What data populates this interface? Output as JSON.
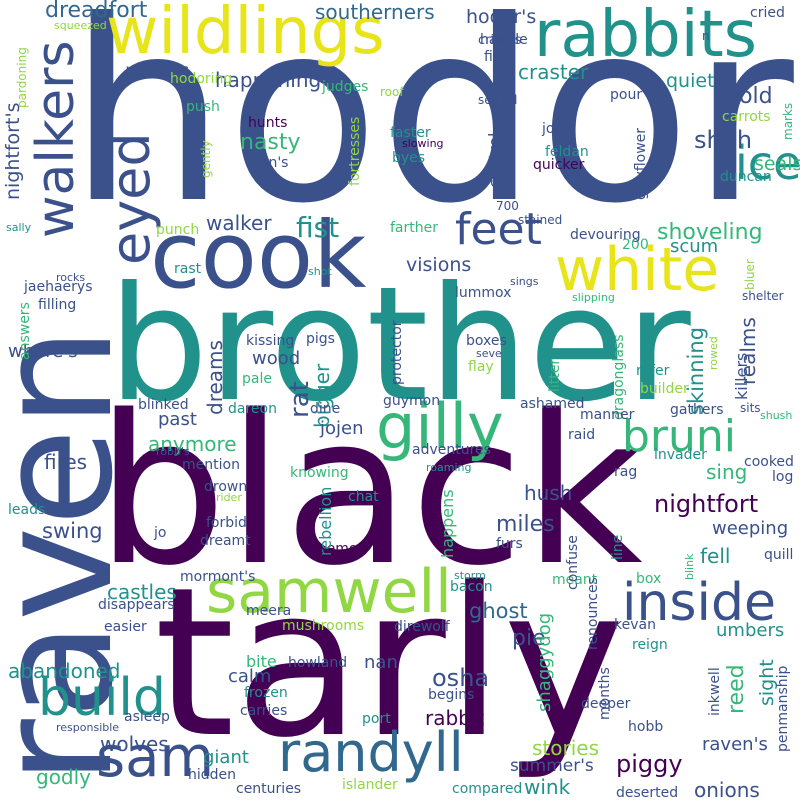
{
  "palette": {
    "indigo": "#3b518b",
    "purple": "#440154",
    "teal": "#21918c",
    "green": "#35b779",
    "lime": "#90d743",
    "yellow": "#e7e419",
    "dark": "#31688e"
  },
  "words": [
    {
      "text": "hodor",
      "color": "#3b518b"
    },
    {
      "text": "brother",
      "color": "#21918c"
    },
    {
      "text": "black",
      "color": "#440154"
    },
    {
      "text": "tarly",
      "color": "#440154"
    },
    {
      "text": "raven",
      "color": "#3b518b"
    },
    {
      "text": "cook",
      "color": "#3b518b"
    },
    {
      "text": "wildlings",
      "color": "#e7e419"
    },
    {
      "text": "rabbits",
      "color": "#21918c"
    },
    {
      "text": "white",
      "color": "#e7e419"
    },
    {
      "text": "walkers",
      "color": "#3b518b"
    },
    {
      "text": "eyed",
      "color": "#3b518b"
    },
    {
      "text": "feet",
      "color": "#3b518b"
    },
    {
      "text": "ice",
      "color": "#21918c"
    },
    {
      "text": "gilly",
      "color": "#35b779"
    },
    {
      "text": "bruni",
      "color": "#35b779"
    },
    {
      "text": "samwell",
      "color": "#90d743"
    },
    {
      "text": "inside",
      "color": "#3b518b"
    },
    {
      "text": "build",
      "color": "#21918c"
    },
    {
      "text": "randyll",
      "color": "#31688e"
    },
    {
      "text": "sam",
      "color": "#3b518b"
    },
    {
      "text": "dreadfort",
      "color": "#31688e"
    },
    {
      "text": "southerners",
      "color": "#31688e"
    },
    {
      "text": "hodor's",
      "color": "#3b518b"
    },
    {
      "text": "crimes",
      "color": "#3b518b"
    },
    {
      "text": "ravens",
      "color": "#3b518b"
    },
    {
      "text": "happening",
      "color": "#3b518b"
    },
    {
      "text": "craster",
      "color": "#21918c"
    },
    {
      "text": "quiet",
      "color": "#21918c"
    },
    {
      "text": "cold",
      "color": "#3b518b"
    },
    {
      "text": "shhh",
      "color": "#3b518b"
    },
    {
      "text": "nasty",
      "color": "#35b779"
    },
    {
      "text": "fist",
      "color": "#21918c"
    },
    {
      "text": "walker",
      "color": "#3b518b"
    },
    {
      "text": "shoveling",
      "color": "#35b779"
    },
    {
      "text": "seals",
      "color": "#35b779"
    },
    {
      "text": "nightfort's",
      "color": "#3b518b"
    },
    {
      "text": "visions",
      "color": "#3b518b"
    },
    {
      "text": "scum",
      "color": "#21918c"
    },
    {
      "text": "dreams",
      "color": "#3b518b"
    },
    {
      "text": "skinning",
      "color": "#21918c"
    },
    {
      "text": "realms",
      "color": "#3b518b"
    },
    {
      "text": "where's",
      "color": "#3b518b"
    },
    {
      "text": "wood",
      "color": "#3b518b"
    },
    {
      "text": "rat",
      "color": "#3b518b"
    },
    {
      "text": "bigger",
      "color": "#21918c"
    },
    {
      "text": "jojen",
      "color": "#3b518b"
    },
    {
      "text": "anymore",
      "color": "#35b779"
    },
    {
      "text": "past",
      "color": "#3b518b"
    },
    {
      "text": "fires",
      "color": "#3b518b"
    },
    {
      "text": "sing",
      "color": "#35b779"
    },
    {
      "text": "nightfort",
      "color": "#440154"
    },
    {
      "text": "hush",
      "color": "#3b518b"
    },
    {
      "text": "miles",
      "color": "#3b518b"
    },
    {
      "text": "swing",
      "color": "#3b518b"
    },
    {
      "text": "weeping",
      "color": "#3b518b"
    },
    {
      "text": "fell",
      "color": "#21918c"
    },
    {
      "text": "castles",
      "color": "#21918c"
    },
    {
      "text": "ghost",
      "color": "#31688e"
    },
    {
      "text": "pie",
      "color": "#3b518b"
    },
    {
      "text": "abandoned",
      "color": "#21918c"
    },
    {
      "text": "osha",
      "color": "#3b518b"
    },
    {
      "text": "nan",
      "color": "#3b518b"
    },
    {
      "text": "calm",
      "color": "#3b518b"
    },
    {
      "text": "umbers",
      "color": "#21918c"
    },
    {
      "text": "reed",
      "color": "#35b779"
    },
    {
      "text": "sight",
      "color": "#21918c"
    },
    {
      "text": "rabbit",
      "color": "#440154"
    },
    {
      "text": "wolves",
      "color": "#3b518b"
    },
    {
      "text": "giant",
      "color": "#21918c"
    },
    {
      "text": "stories",
      "color": "#90d743"
    },
    {
      "text": "wink",
      "color": "#21918c"
    },
    {
      "text": "piggy",
      "color": "#440154"
    },
    {
      "text": "raven's",
      "color": "#3b518b"
    },
    {
      "text": "summer's",
      "color": "#3b518b"
    },
    {
      "text": "onions",
      "color": "#3b518b"
    },
    {
      "text": "godly",
      "color": "#35b779"
    },
    {
      "text": "bite",
      "color": "#35b779"
    },
    {
      "text": "shaggydog",
      "color": "#35b779"
    },
    {
      "text": "hunts",
      "color": "#440154"
    },
    {
      "text": "faster",
      "color": "#21918c"
    },
    {
      "text": "joins",
      "color": "#3b518b"
    },
    {
      "text": "feldan",
      "color": "#21918c"
    },
    {
      "text": "byes",
      "color": "#21918c"
    },
    {
      "text": "quicker",
      "color": "#440154"
    },
    {
      "text": "duncan",
      "color": "#21918c"
    },
    {
      "text": "cooked",
      "color": "#3b518b"
    },
    {
      "text": "log",
      "color": "#3b518b"
    },
    {
      "text": "boxes",
      "color": "#3b518b"
    },
    {
      "text": "flay",
      "color": "#90d743"
    },
    {
      "text": "refer",
      "color": "#21918c"
    },
    {
      "text": "builder",
      "color": "#90d743"
    },
    {
      "text": "gathers",
      "color": "#3b518b"
    },
    {
      "text": "ashamed",
      "color": "#3b518b"
    },
    {
      "text": "guymon",
      "color": "#3b518b"
    },
    {
      "text": "raid",
      "color": "#3b518b"
    },
    {
      "text": "adventures",
      "color": "#3b518b"
    },
    {
      "text": "invader",
      "color": "#21918c"
    },
    {
      "text": "rag",
      "color": "#3b518b"
    },
    {
      "text": "blinked",
      "color": "#3b518b"
    },
    {
      "text": "dareon",
      "color": "#21918c"
    },
    {
      "text": "mention",
      "color": "#3b518b"
    },
    {
      "text": "drown",
      "color": "#3b518b"
    },
    {
      "text": "forbid",
      "color": "#3b518b"
    },
    {
      "text": "dreamt",
      "color": "#3b518b"
    },
    {
      "text": "chat",
      "color": "#21918c"
    },
    {
      "text": "furs",
      "color": "#3b518b"
    },
    {
      "text": "leads",
      "color": "#21918c"
    },
    {
      "text": "jo",
      "color": "#3b518b"
    },
    {
      "text": "aemon",
      "color": "#440154"
    },
    {
      "text": "mormont's",
      "color": "#3b518b"
    },
    {
      "text": "disappears",
      "color": "#3b518b"
    },
    {
      "text": "easier",
      "color": "#3b518b"
    },
    {
      "text": "meera",
      "color": "#3b518b"
    },
    {
      "text": "mushrooms",
      "color": "#90d743"
    },
    {
      "text": "direwolf",
      "color": "#3b518b"
    },
    {
      "text": "bacon",
      "color": "#21918c"
    },
    {
      "text": "meant",
      "color": "#35b779"
    },
    {
      "text": "kevan",
      "color": "#3b518b"
    },
    {
      "text": "reign",
      "color": "#21918c"
    },
    {
      "text": "box",
      "color": "#35b779"
    },
    {
      "text": "howland",
      "color": "#3b518b"
    },
    {
      "text": "frozen",
      "color": "#21918c"
    },
    {
      "text": "carries",
      "color": "#3b518b"
    },
    {
      "text": "begins",
      "color": "#3b518b"
    },
    {
      "text": "deeper",
      "color": "#3b518b"
    },
    {
      "text": "hobb",
      "color": "#3b518b"
    },
    {
      "text": "port",
      "color": "#21918c"
    },
    {
      "text": "asleep",
      "color": "#3b518b"
    },
    {
      "text": "hidden",
      "color": "#3b518b"
    },
    {
      "text": "centuries",
      "color": "#3b518b"
    },
    {
      "text": "islander",
      "color": "#90d743"
    },
    {
      "text": "compared",
      "color": "#21918c"
    },
    {
      "text": "deserted",
      "color": "#3b518b"
    },
    {
      "text": "handle",
      "color": "#3b518b"
    },
    {
      "text": "fists",
      "color": "#3b518b"
    },
    {
      "text": "pour",
      "color": "#3b518b"
    },
    {
      "text": "cried",
      "color": "#3b518b"
    },
    {
      "text": "carrots",
      "color": "#90d743"
    },
    {
      "text": "judges",
      "color": "#35b779"
    },
    {
      "text": "hodoring",
      "color": "#90d743"
    },
    {
      "text": "push",
      "color": "#35b779"
    },
    {
      "text": "jon's",
      "color": "#3b518b"
    },
    {
      "text": "fortresses",
      "color": "#90d743"
    },
    {
      "text": "control",
      "color": "#3b518b"
    },
    {
      "text": "gillyflower",
      "color": "#3b518b"
    },
    {
      "text": "700",
      "color": "#3b518b"
    },
    {
      "text": "200",
      "color": "#35b779"
    },
    {
      "text": "devouring",
      "color": "#3b518b"
    },
    {
      "text": "farther",
      "color": "#35b779"
    },
    {
      "text": "punch",
      "color": "#90d743"
    },
    {
      "text": "rast",
      "color": "#21918c"
    },
    {
      "text": "lummox",
      "color": "#3b518b"
    },
    {
      "text": "filling",
      "color": "#3b518b"
    },
    {
      "text": "jaehaerys",
      "color": "#3b518b"
    },
    {
      "text": "answers",
      "color": "#35b779"
    },
    {
      "text": "kissing",
      "color": "#3b518b"
    },
    {
      "text": "pigs",
      "color": "#3b518b"
    },
    {
      "text": "pale",
      "color": "#35b779"
    },
    {
      "text": "protector",
      "color": "#3b518b"
    },
    {
      "text": "dragonglass",
      "color": "#35b779"
    },
    {
      "text": "litter",
      "color": "#35b779"
    },
    {
      "text": "killers",
      "color": "#3b518b"
    },
    {
      "text": "dine",
      "color": "#3b518b"
    },
    {
      "text": "knowing",
      "color": "#35b779"
    },
    {
      "text": "rebellion",
      "color": "#21918c"
    },
    {
      "text": "happens",
      "color": "#35b779"
    },
    {
      "text": "confuse",
      "color": "#3b518b"
    },
    {
      "text": "renounces",
      "color": "#3b518b"
    },
    {
      "text": "months",
      "color": "#3b518b"
    },
    {
      "text": "inkwell",
      "color": "#3b518b"
    },
    {
      "text": "penmanship",
      "color": "#3b518b"
    },
    {
      "text": "line",
      "color": "#21918c"
    },
    {
      "text": "quill",
      "color": "#3b518b"
    },
    {
      "text": "manner",
      "color": "#3b518b"
    },
    {
      "text": "marks",
      "color": "#35b779"
    },
    {
      "text": "bluer",
      "color": "#90d743"
    },
    {
      "text": "shelter",
      "color": "#3b518b"
    },
    {
      "text": "sits",
      "color": "#3b518b"
    },
    {
      "text": "gently",
      "color": "#90d743"
    },
    {
      "text": "roof",
      "color": "#90d743"
    },
    {
      "text": "sealed",
      "color": "#3b518b"
    },
    {
      "text": "slowing",
      "color": "#440154"
    },
    {
      "text": "stained",
      "color": "#3b518b"
    },
    {
      "text": "squeezed",
      "color": "#90d743"
    },
    {
      "text": "pardoning",
      "color": "#90d743"
    },
    {
      "text": "sally",
      "color": "#21918c"
    },
    {
      "text": "rocks",
      "color": "#3b518b"
    },
    {
      "text": "shot",
      "color": "#21918c"
    },
    {
      "text": "sings",
      "color": "#3b518b"
    },
    {
      "text": "slipping",
      "color": "#35b779"
    },
    {
      "text": "seve",
      "color": "#3b518b"
    },
    {
      "text": "rowed",
      "color": "#90d743"
    },
    {
      "text": "shush",
      "color": "#35b779"
    },
    {
      "text": "robb's",
      "color": "#3b518b"
    },
    {
      "text": "rider",
      "color": "#90d743"
    },
    {
      "text": "roaming",
      "color": "#21918c"
    },
    {
      "text": "storm",
      "color": "#21918c"
    },
    {
      "text": "blink",
      "color": "#35b779"
    },
    {
      "text": "responsible",
      "color": "#3b518b"
    },
    {
      "text": "n",
      "color": "#3b518b"
    }
  ]
}
